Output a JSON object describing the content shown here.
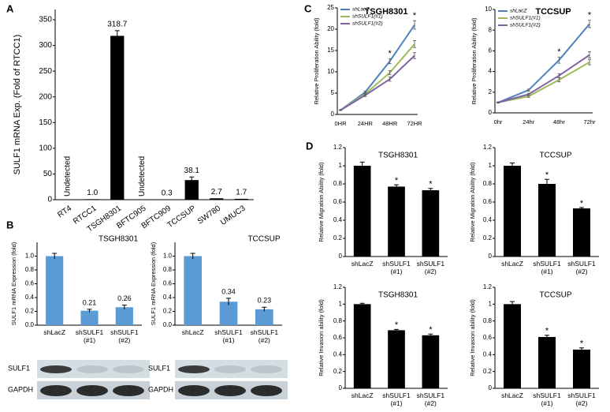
{
  "panel_labels": [
    "A",
    "B",
    "C",
    "D"
  ],
  "chart_data": [
    {
      "type": "bar",
      "y_label": "SULF1 mRNA Exp. (Fold of RTCC1)",
      "color": "#000000",
      "categories": [
        "RT4",
        "RTCC1",
        "TSGH8301",
        "BFTC905",
        "BFTC909",
        "TCCSUP",
        "SW780",
        "UMUC3"
      ],
      "values": [
        null,
        1.0,
        318.7,
        null,
        0.3,
        38.1,
        2.7,
        1.7
      ],
      "value_labels": [
        "Undetected",
        "1.0",
        "318.7",
        "Undetected",
        "0.3",
        "38.1",
        "2.7",
        "1.7"
      ],
      "errors": [
        null,
        null,
        10,
        null,
        null,
        6,
        null,
        null
      ],
      "ylim": [
        0,
        370
      ],
      "yticks": [
        0,
        50,
        100,
        150,
        200,
        250,
        300,
        350
      ]
    },
    {
      "type": "bar",
      "title": "TSGH8301",
      "y_label": "SULF1 mRNA Expression (fold)",
      "color": "#5b9bd5",
      "categories": [
        "shLacZ",
        "shSULF1 (#1)",
        "shSULF1 (#2)"
      ],
      "values": [
        1.0,
        0.21,
        0.26
      ],
      "value_labels": [
        null,
        "0.21",
        "0.26"
      ],
      "errors": [
        0.04,
        0.02,
        0.03
      ],
      "ylim": [
        0,
        1.2
      ],
      "yticks": [
        {
          "value": 0,
          "label": "0.0"
        },
        {
          "value": 0.2,
          "label": "0.2"
        },
        {
          "value": 0.4,
          "label": "0.4"
        },
        {
          "value": 0.6,
          "label": "0.6"
        },
        {
          "value": 0.8,
          "label": "0.8"
        },
        {
          "value": 1,
          "label": "1.0"
        }
      ],
      "blots": [
        "SULF1",
        "GAPDH"
      ]
    },
    {
      "type": "bar",
      "title": "TCCSUP",
      "y_label": "SULF1 mRNA Expression (fold)",
      "color": "#5b9bd5",
      "categories": [
        "shLacZ",
        "shSULF1 (#1)",
        "shSULF1 (#2)"
      ],
      "values": [
        1.0,
        0.34,
        0.23
      ],
      "value_labels": [
        null,
        "0.34",
        "0.23"
      ],
      "errors": [
        0.04,
        0.05,
        0.03
      ],
      "ylim": [
        0,
        1.2
      ],
      "yticks": [
        {
          "value": 0,
          "label": "0.0"
        },
        {
          "value": 0.2,
          "label": "0.2"
        },
        {
          "value": 0.4,
          "label": "0.4"
        },
        {
          "value": 0.6,
          "label": "0.6"
        },
        {
          "value": 0.8,
          "label": "0.8"
        },
        {
          "value": 1,
          "label": "1.0"
        }
      ],
      "blots": [
        "SULF1",
        "GAPDH"
      ]
    },
    {
      "type": "line",
      "title": "TSGH8301",
      "y_label": "Relative Proliferation Ability (fold)",
      "categories": [
        "0HR",
        "24HR",
        "48HR",
        "72HR"
      ],
      "series": [
        {
          "name": "shLacZ",
          "color": "#4f81bd",
          "values": [
            1,
            5.2,
            12.5,
            21
          ],
          "errors": [
            0.1,
            0.3,
            0.6,
            1.0
          ]
        },
        {
          "name": "shSULF1(#1)",
          "color": "#9bbb59",
          "values": [
            1,
            4.8,
            9.8,
            16.5
          ],
          "errors": [
            0.1,
            0.3,
            0.5,
            0.8
          ]
        },
        {
          "name": "shSULF1(#2)",
          "color": "#8064a2",
          "values": [
            1,
            4.5,
            8.3,
            13.8
          ],
          "errors": [
            0.1,
            0.3,
            0.5,
            0.7
          ]
        }
      ],
      "annotations": [
        {
          "text": "*",
          "index": 2
        },
        {
          "text": "*",
          "index": 3
        }
      ],
      "ylim": [
        0,
        25
      ],
      "yticks": [
        0,
        5,
        10,
        15,
        20,
        25
      ]
    },
    {
      "type": "line",
      "title": "TCCSUP",
      "y_label": "Relative Proliferation Ability (fold)",
      "categories": [
        "0hr",
        "24hr",
        "48hr",
        "72hr"
      ],
      "series": [
        {
          "name": "shLacZ",
          "color": "#4f81bd",
          "values": [
            1,
            2.2,
            5.1,
            8.6
          ],
          "errors": [
            0.05,
            0.1,
            0.3,
            0.35
          ]
        },
        {
          "name": "shSULF1(#1)",
          "color": "#9bbb59",
          "values": [
            1,
            1.6,
            3.2,
            4.9
          ],
          "errors": [
            0.05,
            0.1,
            0.2,
            0.25
          ]
        },
        {
          "name": "shSULF1(#2)",
          "color": "#8064a2",
          "values": [
            1,
            1.8,
            3.6,
            5.6
          ],
          "errors": [
            0.05,
            0.1,
            0.2,
            0.3
          ]
        }
      ],
      "annotations": [
        {
          "text": "*",
          "index": 2
        },
        {
          "text": "*",
          "index": 3
        }
      ],
      "ylim": [
        0,
        10
      ],
      "yticks": [
        0,
        2,
        4,
        6,
        8,
        10
      ]
    },
    {
      "type": "bar",
      "title": "TSGH8301",
      "y_label": "Relative Migration Ability (fold)",
      "color": "#000000",
      "categories": [
        "shLacZ",
        "shSULF1 (#1)",
        "shSULF1 (#2)"
      ],
      "values": [
        1,
        0.77,
        0.73
      ],
      "errors": [
        0.04,
        0.02,
        0.02
      ],
      "annotations": [
        {
          "text": "*",
          "index": 1
        },
        {
          "text": "*",
          "index": 2
        }
      ],
      "ylim": [
        0,
        1.2
      ],
      "yticks": [
        0,
        0.2,
        0.4,
        0.6,
        0.8,
        1,
        1.2
      ]
    },
    {
      "type": "bar",
      "title": "TCCSUP",
      "y_label": "Relative Migration Ability (fold)",
      "color": "#000000",
      "categories": [
        "shLacZ",
        "shSULF1 (#1)",
        "shSULF1 (#2)"
      ],
      "values": [
        1,
        0.8,
        0.53
      ],
      "errors": [
        0.03,
        0.05,
        0.01
      ],
      "annotations": [
        {
          "text": "*",
          "index": 1
        },
        {
          "text": "*",
          "index": 2
        }
      ],
      "ylim": [
        0,
        1.2
      ],
      "yticks": [
        0,
        0.2,
        0.4,
        0.6,
        0.8,
        1,
        1.2
      ]
    },
    {
      "type": "bar",
      "title": "TSGH8301",
      "y_label": "Relative Invasion ability (fold)",
      "color": "#000000",
      "categories": [
        "shLacZ",
        "shSULF1 (#1)",
        "shSULF1 (#2)"
      ],
      "values": [
        1,
        0.69,
        0.63
      ],
      "errors": [
        0.01,
        0.01,
        0.015
      ],
      "annotations": [
        {
          "text": "*",
          "index": 1
        },
        {
          "text": "*",
          "index": 2
        }
      ],
      "ylim": [
        0,
        1.2
      ],
      "yticks": [
        0,
        0.2,
        0.4,
        0.6,
        0.8,
        1,
        1.2
      ]
    },
    {
      "type": "bar",
      "title": "TCCSUP",
      "y_label": "Relative Invasion ability (fold)",
      "color": "#000000",
      "categories": [
        "shLacZ",
        "shSULF1 (#1)",
        "shSULF1 (#2)"
      ],
      "values": [
        1,
        0.61,
        0.46
      ],
      "errors": [
        0.03,
        0.02,
        0.02
      ],
      "annotations": [
        {
          "text": "*",
          "index": 1
        },
        {
          "text": "*",
          "index": 2
        }
      ],
      "ylim": [
        0,
        1.2
      ],
      "yticks": [
        0,
        0.2,
        0.4,
        0.6,
        0.8,
        1,
        1.2
      ]
    }
  ]
}
